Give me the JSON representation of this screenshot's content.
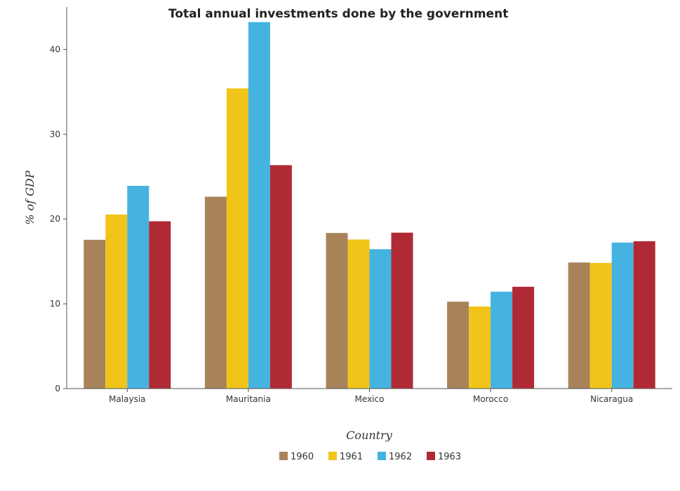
{
  "chart_data": {
    "type": "bar",
    "title": "Total annual investments done by the government",
    "xlabel": "Country",
    "ylabel": "% of GDP",
    "categories": [
      "Malaysia",
      "Mauritania",
      "Mexico",
      "Morocco",
      "Nicaragua"
    ],
    "ylim": [
      0,
      45
    ],
    "yticks": [
      0,
      10,
      20,
      30,
      40
    ],
    "grid": false,
    "legend_position": "bottom-center",
    "series": [
      {
        "name": "1960",
        "color": "#a8835a",
        "values": [
          17.55,
          22.63,
          18.35,
          10.25,
          14.87
        ]
      },
      {
        "name": "1961",
        "color": "#f0c419",
        "values": [
          20.53,
          35.4,
          17.58,
          9.69,
          14.82
        ]
      },
      {
        "name": "1962",
        "color": "#45b3e0",
        "values": [
          23.91,
          43.22,
          16.44,
          11.43,
          17.22
        ]
      },
      {
        "name": "1963",
        "color": "#b02a35",
        "values": [
          19.73,
          26.35,
          18.39,
          12.01,
          17.38
        ]
      }
    ]
  }
}
